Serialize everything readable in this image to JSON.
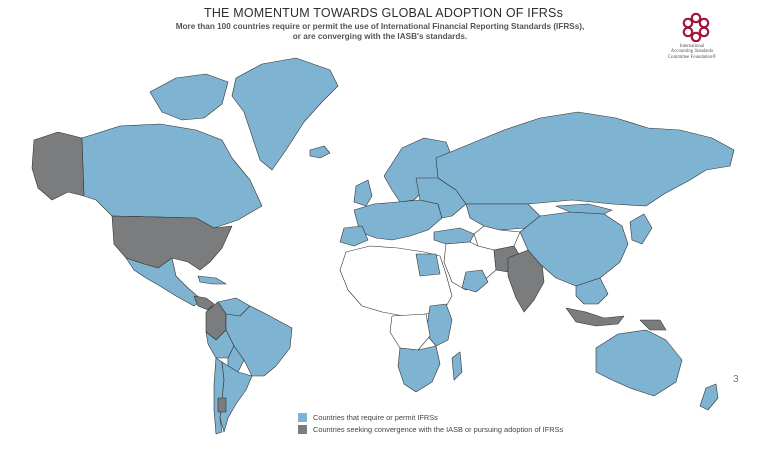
{
  "title": "THE MOMENTUM TOWARDS GLOBAL ADOPTION OF IFRSs",
  "subtitle_line1": "More than 100 countries require or permit the use of International Financial Reporting Standards (IFRSs),",
  "subtitle_line2": "or are converging with the IASB's standards.",
  "logo": {
    "icon": "iasc-foundation-logo-icon",
    "line1": "International",
    "line2": "Accounting Standards",
    "line3": "Committee Foundation®",
    "color": "#a3143b"
  },
  "page_number": "3",
  "colors": {
    "ifrs": "#7eb3d1",
    "converging": "#7b7c7e",
    "other": "#ffffff",
    "border": "#333333"
  },
  "legend": {
    "ifrs_label": "Countries that require or permit IFRSs",
    "converging_label": "Countries seeking convergence with the IASB or pursuing adoption of IFRSs"
  }
}
